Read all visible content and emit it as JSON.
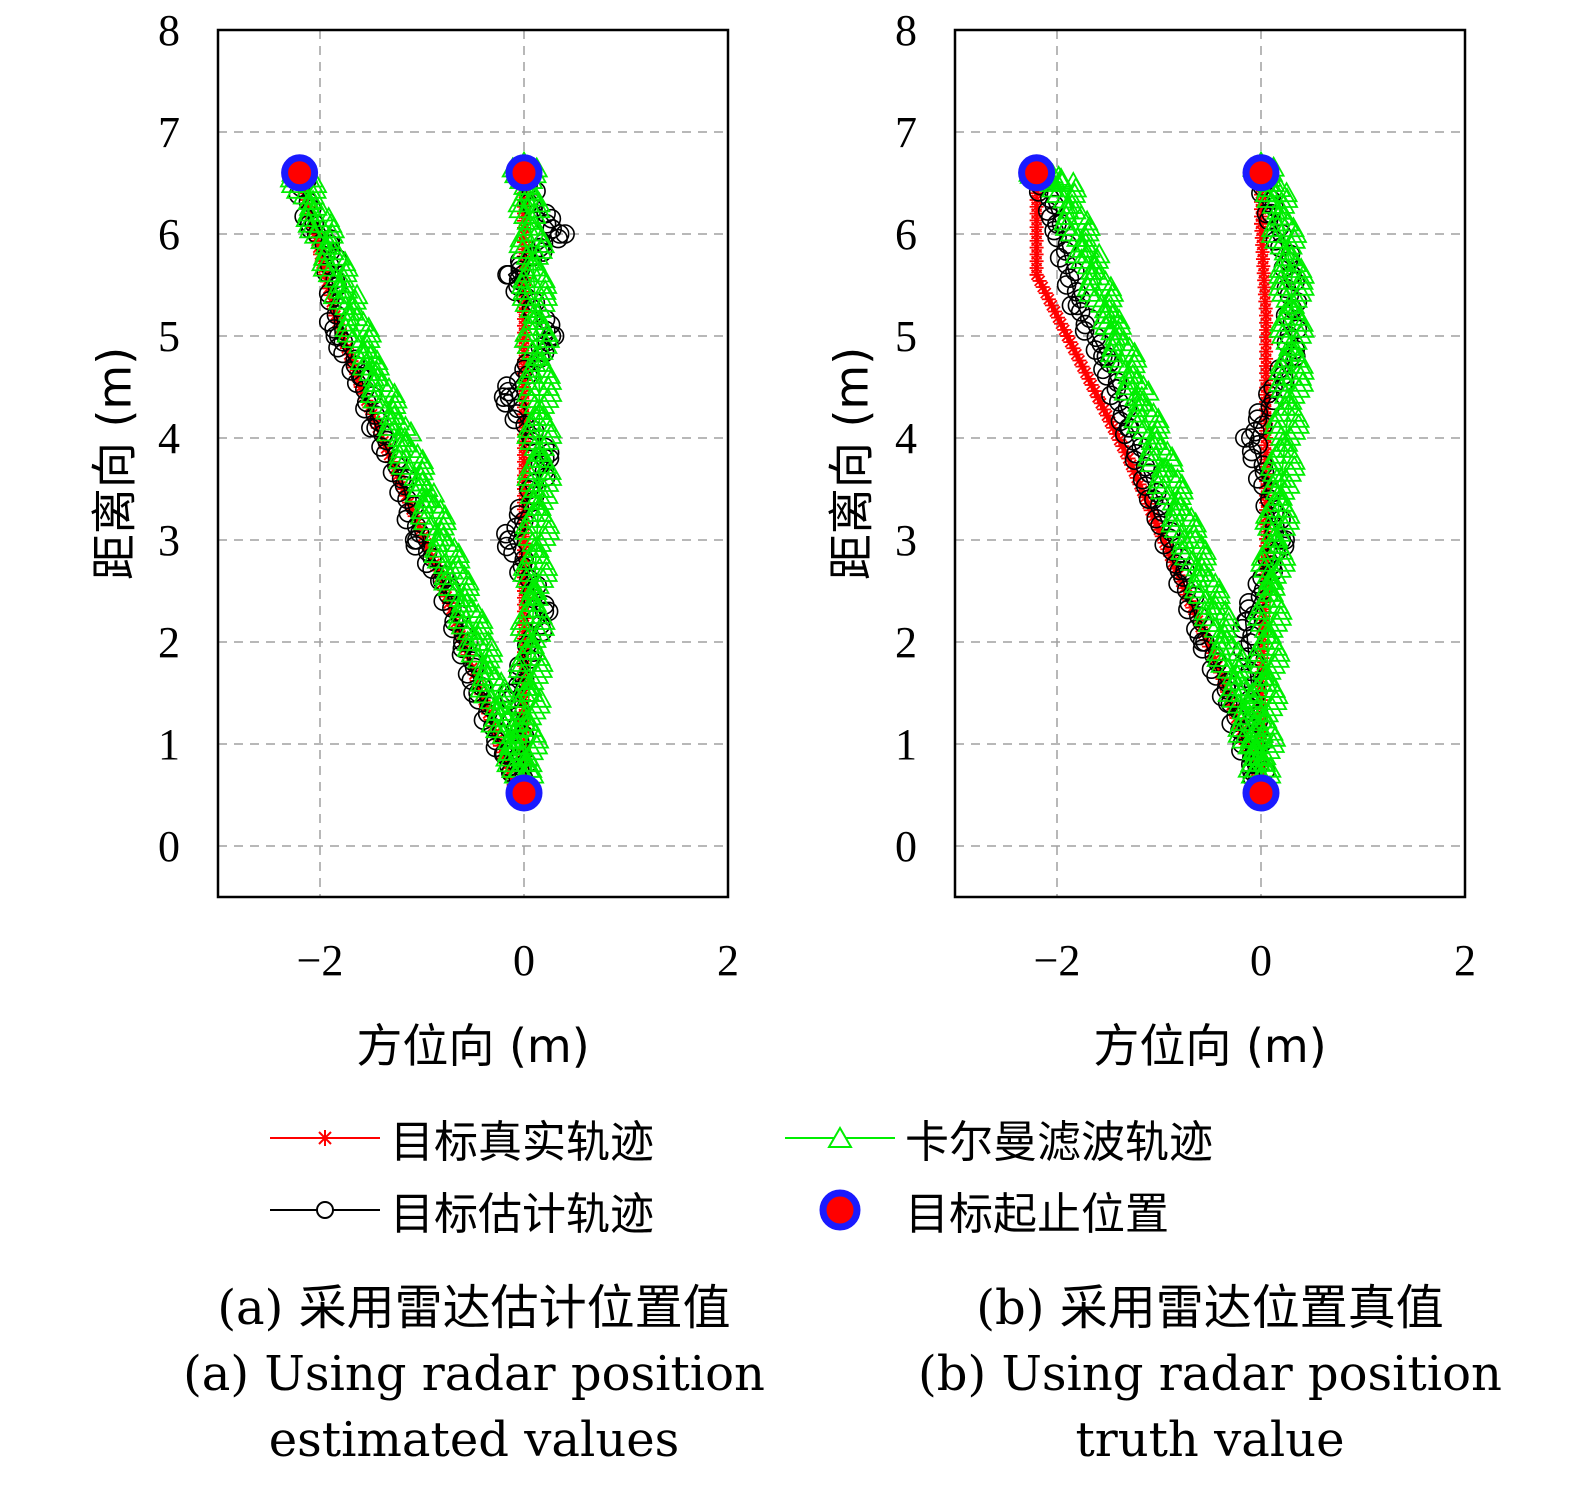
{
  "legend": [
    {
      "label": "目标真实轨迹",
      "key": "truth"
    },
    {
      "label": "卡尔曼滤波轨迹",
      "key": "kalman"
    },
    {
      "label": "目标估计轨迹",
      "key": "estimate"
    },
    {
      "label": "目标起止位置",
      "key": "endpoints"
    }
  ],
  "colors": {
    "truth": "#ff0000",
    "kalman": "#00ee00",
    "estimate": "#000000",
    "marker_fill": "#ff0000",
    "marker_edge": "#1a1aff",
    "grid": "#a0a0a0"
  },
  "captions": {
    "a": {
      "zh": "(a) 采用雷达估计位置值",
      "en1": "(a) Using radar position",
      "en2": "estimated values"
    },
    "b": {
      "zh": "(b) 采用雷达位置真值",
      "en1": "(b) Using radar position",
      "en2": "truth value"
    }
  },
  "chart_data": [
    {
      "type": "line",
      "panel": "a",
      "xlabel": "方位向 (m)",
      "ylabel": "距离向 (m)",
      "xlim": [
        -3,
        2
      ],
      "ylim": [
        -0.5,
        8
      ],
      "xticks": [
        -2,
        0,
        2
      ],
      "xtick_labels": [
        "−2",
        "0",
        "2"
      ],
      "yticks": [
        0,
        1,
        2,
        3,
        4,
        5,
        6,
        7,
        8
      ],
      "grid": true,
      "series": [
        {
          "name": "目标真实轨迹",
          "key": "truth",
          "marker": "star",
          "x": [
            -2.2,
            -2.05,
            -1.85,
            -1.6,
            -1.35,
            -1.1,
            -0.85,
            -0.6,
            -0.35,
            -0.1,
            0,
            0,
            0,
            0,
            0,
            0,
            0,
            0
          ],
          "y": [
            6.6,
            6.0,
            5.2,
            4.5,
            3.9,
            3.3,
            2.7,
            2.0,
            1.3,
            0.6,
            0.6,
            1.5,
            2.5,
            3.5,
            4.5,
            5.5,
            6.2,
            6.6
          ]
        },
        {
          "name": "目标估计轨迹",
          "key": "estimate",
          "marker": "circle",
          "x": [
            -2.2,
            -2.1,
            -1.9,
            -1.85,
            -1.6,
            -1.45,
            -1.2,
            -1.05,
            -0.8,
            -0.6,
            -0.45,
            -0.2,
            0.0,
            -0.1,
            0.2,
            -0.15,
            0.25,
            -0.2,
            0.3,
            -0.15,
            0.35,
            0.1,
            0.0
          ],
          "y": [
            6.6,
            6.1,
            5.9,
            5.0,
            4.6,
            4.1,
            3.6,
            3.0,
            2.6,
            2.0,
            1.5,
            0.9,
            0.6,
            1.5,
            2.3,
            3.0,
            3.8,
            4.4,
            5.0,
            5.6,
            6.0,
            6.3,
            6.6
          ]
        },
        {
          "name": "卡尔曼滤波轨迹",
          "key": "kalman",
          "marker": "triangle",
          "x": [
            -2.2,
            -2.0,
            -1.75,
            -1.5,
            -1.2,
            -0.95,
            -0.7,
            -0.45,
            -0.2,
            0.0,
            0.05,
            0.1,
            0.15,
            0.15,
            0.1,
            0.05,
            0.0
          ],
          "y": [
            6.6,
            6.1,
            5.4,
            4.7,
            4.0,
            3.4,
            2.7,
            2.0,
            1.2,
            0.7,
            1.5,
            2.5,
            3.5,
            4.5,
            5.5,
            6.3,
            6.7
          ]
        },
        {
          "name": "目标起止位置",
          "key": "endpoints",
          "marker": "disc",
          "x": [
            -2.2,
            0,
            0
          ],
          "y": [
            6.6,
            6.6,
            0.52
          ]
        }
      ]
    },
    {
      "type": "line",
      "panel": "b",
      "xlabel": "方位向 (m)",
      "ylabel": "距离向 (m)",
      "xlim": [
        -3,
        2
      ],
      "ylim": [
        -0.5,
        8
      ],
      "xticks": [
        -2,
        0,
        2
      ],
      "xtick_labels": [
        "−2",
        "0",
        "2"
      ],
      "yticks": [
        0,
        1,
        2,
        3,
        4,
        5,
        6,
        7,
        8
      ],
      "grid": true,
      "series": [
        {
          "name": "目标真实轨迹",
          "key": "truth",
          "marker": "star",
          "x": [
            -2.2,
            -2.2,
            -1.9,
            -1.6,
            -1.3,
            -1.0,
            -0.7,
            -0.4,
            -0.15,
            0,
            0,
            0.05,
            0.05,
            0.05,
            0,
            0
          ],
          "y": [
            6.6,
            5.6,
            5.0,
            4.4,
            3.8,
            3.1,
            2.4,
            1.7,
            1.0,
            0.6,
            1.5,
            2.8,
            4.0,
            5.2,
            6.1,
            6.6
          ]
        },
        {
          "name": "目标估计轨迹",
          "key": "estimate",
          "marker": "circle",
          "x": [
            -2.2,
            -2.0,
            -1.8,
            -1.55,
            -1.3,
            -1.05,
            -0.8,
            -0.55,
            -0.3,
            -0.1,
            0.0,
            -0.15,
            0.2,
            -0.1,
            0.3,
            0.3,
            0.1,
            0.0
          ],
          "y": [
            6.6,
            6.1,
            5.3,
            4.8,
            4.1,
            3.4,
            2.7,
            2.0,
            1.4,
            0.8,
            0.6,
            2.2,
            3.0,
            4.0,
            4.8,
            5.6,
            6.2,
            6.6
          ]
        },
        {
          "name": "卡尔曼滤波轨迹",
          "key": "kalman",
          "marker": "triangle",
          "x": [
            -2.2,
            -1.95,
            -1.7,
            -1.45,
            -1.2,
            -0.95,
            -0.7,
            -0.45,
            -0.2,
            0.0,
            0.05,
            0.1,
            0.2,
            0.3,
            0.3,
            0.15,
            0.0
          ],
          "y": [
            6.6,
            6.5,
            5.8,
            5.1,
            4.4,
            3.7,
            3.0,
            2.3,
            1.5,
            0.7,
            1.6,
            2.6,
            3.6,
            4.6,
            5.6,
            6.4,
            6.7
          ]
        },
        {
          "name": "目标起止位置",
          "key": "endpoints",
          "marker": "disc",
          "x": [
            -2.2,
            0,
            0
          ],
          "y": [
            6.6,
            6.6,
            0.52
          ]
        }
      ]
    }
  ]
}
